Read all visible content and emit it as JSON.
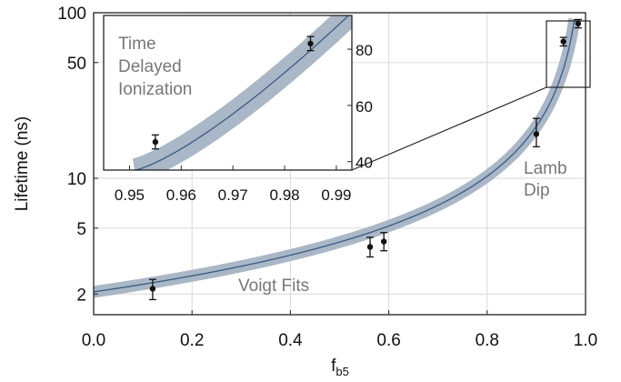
{
  "chart_data": [
    {
      "type": "scatter",
      "xlabel": "f",
      "xlabel_sub": "b5",
      "ylabel": "Lifetime (ns)",
      "xlim": [
        0,
        1
      ],
      "ylim": [
        1.5,
        100
      ],
      "yscale": "log",
      "grid": true,
      "x_ticks": [
        "0.0",
        "0.2",
        "0.4",
        "0.6",
        "0.8",
        "1.0"
      ],
      "y_ticks": [
        "2",
        "5",
        "10",
        "50",
        "100"
      ],
      "y_tick_values": [
        2,
        5,
        10,
        50,
        100
      ],
      "series": [
        {
          "points": [
            {
              "x": 0.12,
              "y": 2.15,
              "err_low": 1.85,
              "err_high": 2.45
            },
            {
              "x": 0.562,
              "y": 3.85,
              "err_low": 3.35,
              "err_high": 4.4
            },
            {
              "x": 0.59,
              "y": 4.15,
              "err_low": 3.65,
              "err_high": 4.7
            },
            {
              "x": 0.9,
              "y": 18.5,
              "err_low": 15.5,
              "err_high": 23.0
            },
            {
              "x": 0.955,
              "y": 67,
              "err_low": 63,
              "err_high": 71
            },
            {
              "x": 0.985,
              "y": 86,
              "err_low": 81,
              "err_high": 91
            }
          ]
        }
      ],
      "fit_curve": {
        "formula": "tau0 / (1 - f)",
        "tau0_ns": 2.06,
        "band_color": "#a9b7c6",
        "line_color": "#3c5a85"
      },
      "annotations": [
        "Voigt Fits",
        "Lamb Dip"
      ]
    },
    {
      "type": "scatter",
      "inset": true,
      "xlim": [
        0.945,
        0.993
      ],
      "ylim": [
        37,
        92
      ],
      "x_ticks": [
        "0.95",
        "0.96",
        "0.97",
        "0.98",
        "0.99"
      ],
      "y_ticks": [
        "40",
        "60",
        "80"
      ],
      "series": [
        {
          "points": [
            {
              "x": 0.955,
              "y": 47,
              "err_low": 44.5,
              "err_high": 49.5
            },
            {
              "x": 0.985,
              "y": 82,
              "err_low": 79.5,
              "err_high": 84.5
            }
          ]
        }
      ],
      "annotations": [
        "Time",
        "Delayed",
        "Ionization"
      ]
    }
  ]
}
